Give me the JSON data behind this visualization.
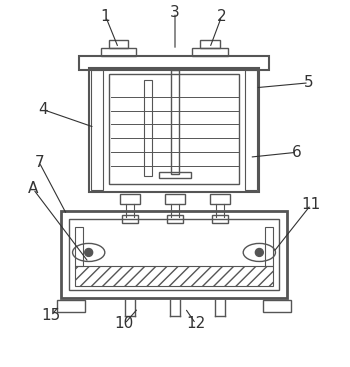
{
  "background_color": "#ffffff",
  "line_color": "#555555",
  "label_color": "#333333",
  "figsize": [
    3.5,
    3.67
  ],
  "dpi": 100
}
